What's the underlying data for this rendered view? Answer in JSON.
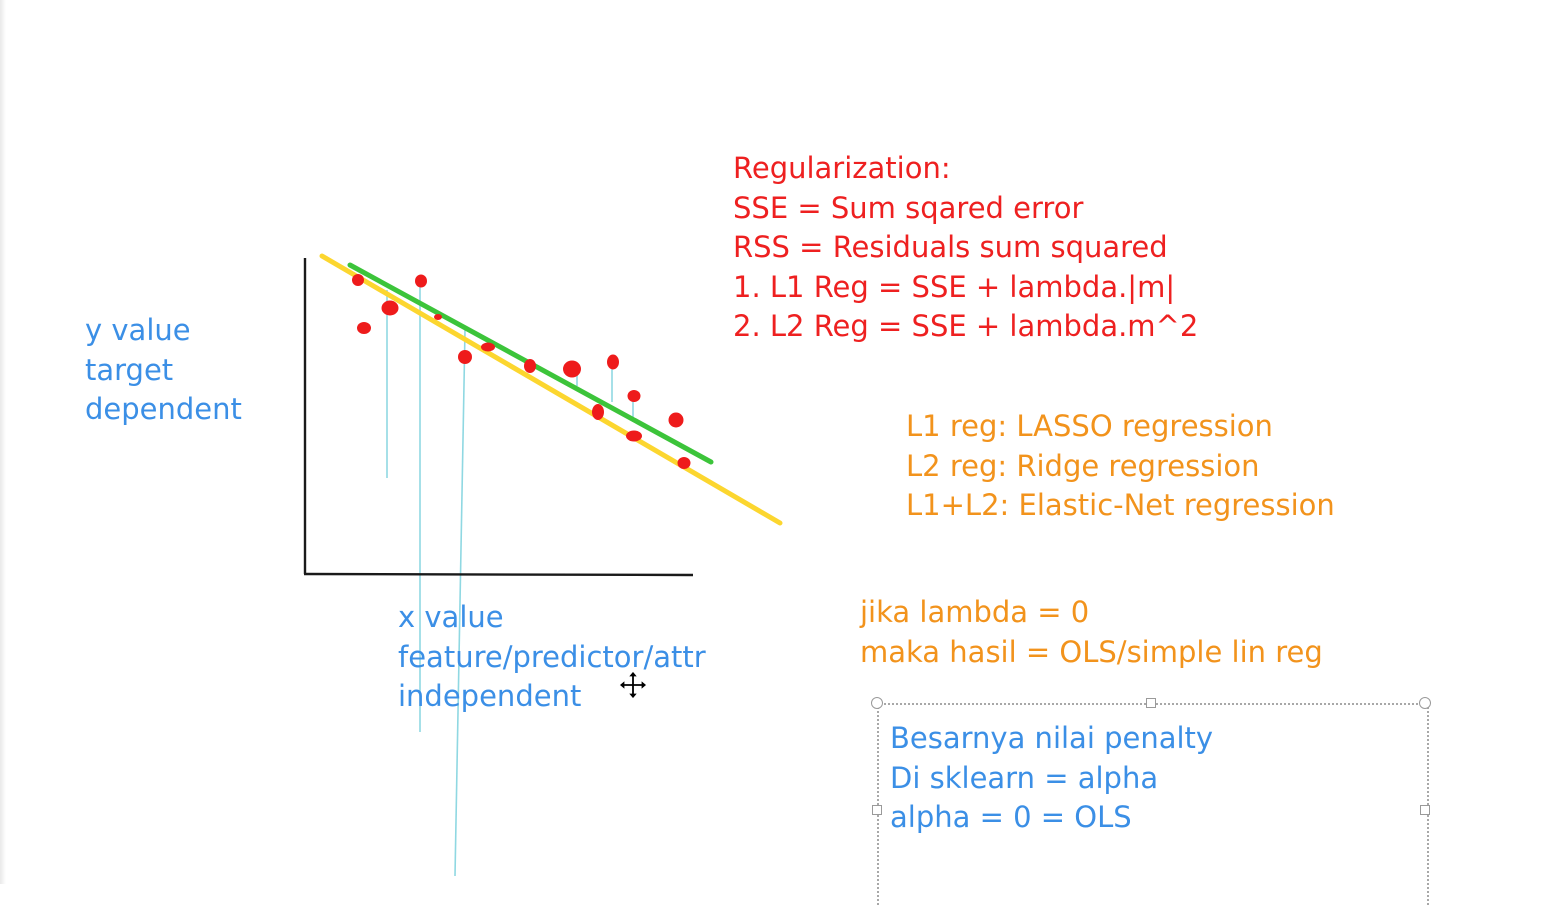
{
  "canvas": {
    "colors": {
      "blue_text": "#3b8fe6",
      "red_text": "#ee2020",
      "orange_text": "#f2931c",
      "data_points": "#ee1b1b",
      "line_yellow": "#fcd62f",
      "line_green": "#3cc43a",
      "residual_lines": "#8fd8e2",
      "axes": "#1a1a1a"
    },
    "y_axis_label": [
      "y value",
      "target",
      "dependent"
    ],
    "x_axis_label": [
      "x value",
      "feature/predictor/attr",
      "independent"
    ],
    "regularization_notes": [
      "Regularization:",
      "SSE = Sum sqared error",
      "RSS = Residuals sum squared",
      "1. L1 Reg = SSE + lambda.|m|",
      "2. L2 Reg = SSE + lambda.m^2"
    ],
    "regression_types": [
      "L1 reg: LASSO regression",
      "L2 reg: Ridge regression",
      "L1+L2: Elastic-Net regression"
    ],
    "lambda_notes": [
      "jika lambda = 0",
      "maka hasil = OLS/simple lin reg"
    ],
    "penalty_textbox": [
      "Besarnya nilai penalty",
      "Di sklearn = alpha",
      "alpha = 0 = OLS"
    ],
    "cursor_icon": "move-cursor-icon"
  }
}
